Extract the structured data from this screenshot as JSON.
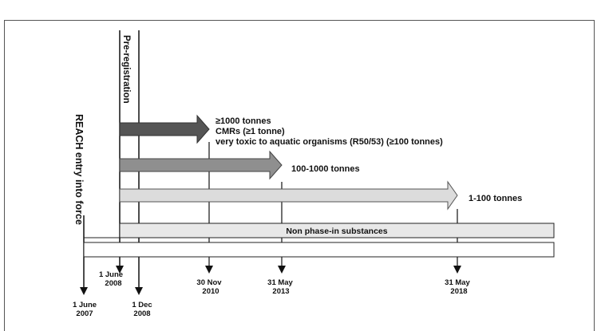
{
  "vertical_labels": {
    "entry_into_force": "REACH entry into force",
    "pre_registration": "Pre-registration"
  },
  "bands": [
    {
      "lines": [
        "≥1000 tonnes",
        "CMRs (≥1 tonne)",
        "very toxic to aquatic organisms (R50/53)  (≥100 tonnes)"
      ]
    },
    {
      "lines": [
        "100-1000 tonnes"
      ]
    },
    {
      "lines": [
        "1-100 tonnes"
      ]
    }
  ],
  "non_phase_in": "Non phase-in substances",
  "dates": [
    {
      "lines": [
        "1 June",
        "2007"
      ]
    },
    {
      "lines": [
        "1 June",
        "2008"
      ]
    },
    {
      "lines": [
        "1 Dec",
        "2008"
      ]
    },
    {
      "lines": [
        "30 Nov",
        "2010"
      ]
    },
    {
      "lines": [
        "31 May",
        "2013"
      ]
    },
    {
      "lines": [
        "31 May",
        "2018"
      ]
    }
  ],
  "colors": {
    "band_1": "#555555",
    "band_2": "#8f8f8f",
    "band_3": "#dcdcdc",
    "bar_fill": "#e8e8e8",
    "line": "#111111"
  }
}
